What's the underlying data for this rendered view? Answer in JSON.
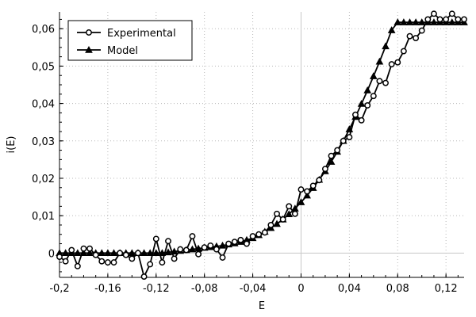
{
  "chart_data": {
    "type": "line",
    "xlabel": "E",
    "ylabel": "i(E)",
    "xlim": [
      -0.2,
      0.135
    ],
    "ylim": [
      -0.0065,
      0.0645
    ],
    "grid": true,
    "legend_position": "top-left",
    "x_ticks": [
      -0.2,
      -0.16,
      -0.12,
      -0.08,
      -0.04,
      0,
      0.04,
      0.08,
      0.12
    ],
    "x_tick_labels": [
      "-0,2",
      "-0,16",
      "-0,12",
      "-0,08",
      "-0,04",
      "0",
      "0,04",
      "0,08",
      "0,12"
    ],
    "y_ticks": [
      0,
      0.01,
      0.02,
      0.03,
      0.04,
      0.05,
      0.06
    ],
    "y_tick_labels": [
      "0",
      "0,01",
      "0,02",
      "0,03",
      "0,04",
      "0,05",
      "0,06"
    ],
    "series": [
      {
        "name": "Experimental",
        "marker": "circle",
        "color": "#000000",
        "x": [
          -0.2,
          -0.195,
          -0.19,
          -0.185,
          -0.18,
          -0.175,
          -0.17,
          -0.165,
          -0.16,
          -0.155,
          -0.15,
          -0.145,
          -0.14,
          -0.135,
          -0.13,
          -0.125,
          -0.12,
          -0.115,
          -0.11,
          -0.105,
          -0.1,
          -0.095,
          -0.09,
          -0.085,
          -0.08,
          -0.075,
          -0.07,
          -0.065,
          -0.06,
          -0.055,
          -0.05,
          -0.045,
          -0.04,
          -0.035,
          -0.03,
          -0.025,
          -0.02,
          -0.015,
          -0.01,
          -0.005,
          0,
          0.005,
          0.01,
          0.015,
          0.02,
          0.025,
          0.03,
          0.035,
          0.04,
          0.045,
          0.05,
          0.055,
          0.06,
          0.065,
          0.07,
          0.075,
          0.08,
          0.085,
          0.09,
          0.095,
          0.1,
          0.105,
          0.11,
          0.115,
          0.12,
          0.125,
          0.13,
          0.135
        ],
        "y": [
          -0.001,
          -0.0022,
          0.0008,
          -0.0035,
          0.0012,
          0.0012,
          -0.0005,
          -0.0022,
          -0.0025,
          -0.0025,
          0.0,
          -0.0005,
          -0.0015,
          0.0,
          -0.0063,
          -0.003,
          0.0038,
          -0.0025,
          0.0032,
          -0.0015,
          0.001,
          0.0008,
          0.0045,
          -0.0003,
          0.0015,
          0.002,
          0.001,
          -0.0012,
          0.0025,
          0.003,
          0.0035,
          0.0025,
          0.0045,
          0.005,
          0.0055,
          0.0075,
          0.0105,
          0.009,
          0.0125,
          0.0105,
          0.017,
          0.0165,
          0.018,
          0.0195,
          0.0225,
          0.026,
          0.0275,
          0.03,
          0.031,
          0.037,
          0.0355,
          0.0395,
          0.042,
          0.046,
          0.0455,
          0.0505,
          0.051,
          0.054,
          0.058,
          0.0575,
          0.0595,
          0.0625,
          0.064,
          0.0625,
          0.0625,
          0.064,
          0.0625,
          0.0625
        ]
      },
      {
        "name": "Model",
        "marker": "triangle",
        "color": "#000000",
        "x": [
          -0.2,
          -0.195,
          -0.19,
          -0.185,
          -0.18,
          -0.175,
          -0.17,
          -0.165,
          -0.16,
          -0.155,
          -0.15,
          -0.145,
          -0.14,
          -0.135,
          -0.13,
          -0.125,
          -0.12,
          -0.115,
          -0.11,
          -0.105,
          -0.1,
          -0.095,
          -0.09,
          -0.085,
          -0.08,
          -0.075,
          -0.07,
          -0.065,
          -0.06,
          -0.055,
          -0.05,
          -0.045,
          -0.04,
          -0.035,
          -0.03,
          -0.025,
          -0.02,
          -0.015,
          -0.01,
          -0.005,
          0,
          0.005,
          0.01,
          0.015,
          0.02,
          0.025,
          0.03,
          0.035,
          0.04,
          0.045,
          0.05,
          0.055,
          0.06,
          0.065,
          0.07,
          0.075,
          0.08,
          0.085,
          0.09,
          0.095,
          0.1,
          0.105,
          0.11,
          0.115,
          0.12,
          0.125,
          0.13,
          0.135
        ],
        "y": [
          0.0,
          0.0,
          0.0,
          0.0,
          0.0,
          0.0,
          0.0,
          0.0,
          0.0,
          0.0,
          0.0,
          0.0,
          0.0,
          0.0,
          0.0,
          0.0,
          0.0,
          0.0,
          0.0002,
          0.0004,
          0.0006,
          0.0008,
          0.001,
          0.0012,
          0.0014,
          0.0016,
          0.0018,
          0.002,
          0.0023,
          0.0026,
          0.003,
          0.0035,
          0.004,
          0.0048,
          0.0057,
          0.0067,
          0.0078,
          0.009,
          0.0104,
          0.0119,
          0.0136,
          0.0154,
          0.0174,
          0.0196,
          0.0219,
          0.0244,
          0.0271,
          0.03,
          0.0331,
          0.0364,
          0.0399,
          0.0435,
          0.0473,
          0.0512,
          0.0553,
          0.0596,
          0.0617,
          0.0617,
          0.0617,
          0.0617,
          0.0617,
          0.0617,
          0.0617,
          0.0617,
          0.0617,
          0.0617,
          0.0617,
          0.0617
        ]
      }
    ]
  }
}
